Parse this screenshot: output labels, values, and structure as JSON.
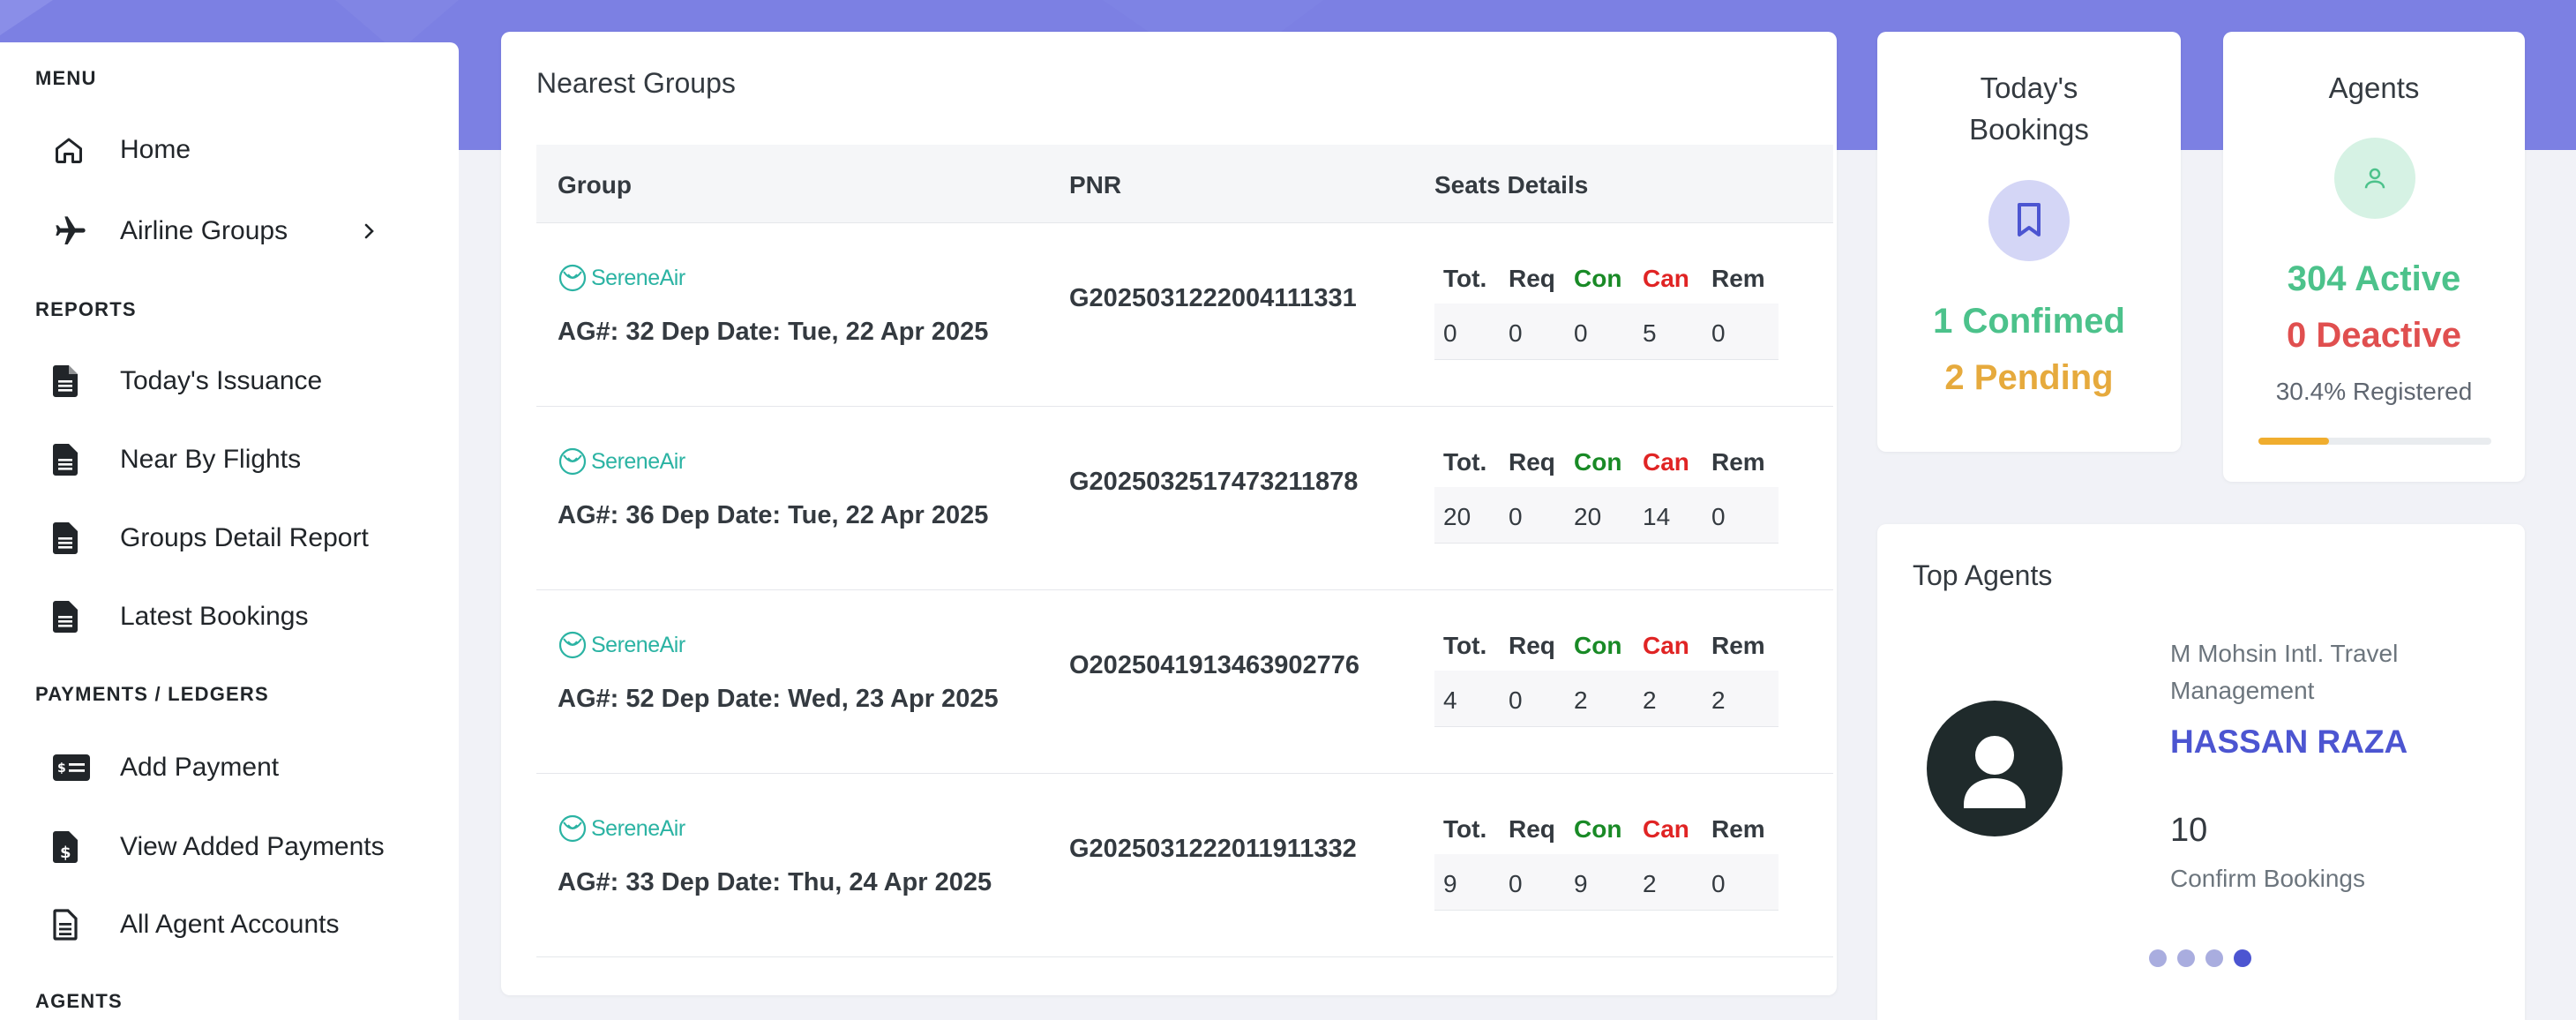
{
  "sidebar": {
    "sections": {
      "menu": "MENU",
      "reports": "REPORTS",
      "payments": "PAYMENTS / LEDGERS",
      "agents": "AGENTS"
    },
    "items": {
      "home": "Home",
      "airline_groups": "Airline Groups",
      "todays_issuance": "Today's Issuance",
      "near_by_flights": "Near By Flights",
      "groups_detail_report": "Groups Detail Report",
      "latest_bookings": "Latest Bookings",
      "add_payment": "Add Payment",
      "view_added_payments": "View Added Payments",
      "all_agent_accounts": "All Agent Accounts"
    }
  },
  "nearest_groups": {
    "title": "Nearest Groups",
    "headers": {
      "group": "Group",
      "pnr": "PNR",
      "seats": "Seats Details"
    },
    "seat_headers": [
      "Tot.",
      "Req",
      "Con",
      "Can",
      "Rem"
    ],
    "airline_logo_text": {
      "a": "Serene",
      "b": "Air"
    },
    "rows": [
      {
        "ag": "AG#: 32 Dep Date: Tue, 22 Apr 2025",
        "pnr": "G2025031222004111331",
        "seats": [
          "0",
          "0",
          "0",
          "5",
          "0"
        ]
      },
      {
        "ag": "AG#: 36 Dep Date: Tue, 22 Apr 2025",
        "pnr": "G2025032517473211878",
        "seats": [
          "20",
          "0",
          "20",
          "14",
          "0"
        ]
      },
      {
        "ag": "AG#: 52 Dep Date: Wed, 23 Apr 2025",
        "pnr": "O2025041913463902776",
        "seats": [
          "4",
          "0",
          "2",
          "2",
          "2"
        ]
      },
      {
        "ag": "AG#: 33 Dep Date: Thu, 24 Apr 2025",
        "pnr": "G2025031222011911332",
        "seats": [
          "9",
          "0",
          "9",
          "2",
          "0"
        ]
      }
    ]
  },
  "todays_bookings": {
    "title_line1": "Today's",
    "title_line2": "Bookings",
    "confirmed": "1 Confimed",
    "pending": "2 Pending"
  },
  "agents": {
    "title": "Agents",
    "active": "304 Active",
    "deactive": "0 Deactive",
    "registered": "30.4% Registered",
    "registered_fraction": 0.304
  },
  "top_agents": {
    "title": "Top Agents",
    "company": "M Mohsin Intl. Travel Management",
    "name": "HASSAN RAZA",
    "count": "10",
    "count_label": "Confirm Bookings",
    "carousel_active_index": 3,
    "carousel_count": 4
  },
  "colors": {
    "banner": "#7c80e3",
    "accent": "#4c55d1",
    "success": "#4cc28b",
    "danger": "#e04f4f",
    "warning": "#e6aa3d",
    "con_green": "#198a26",
    "can_red": "#e02424"
  }
}
